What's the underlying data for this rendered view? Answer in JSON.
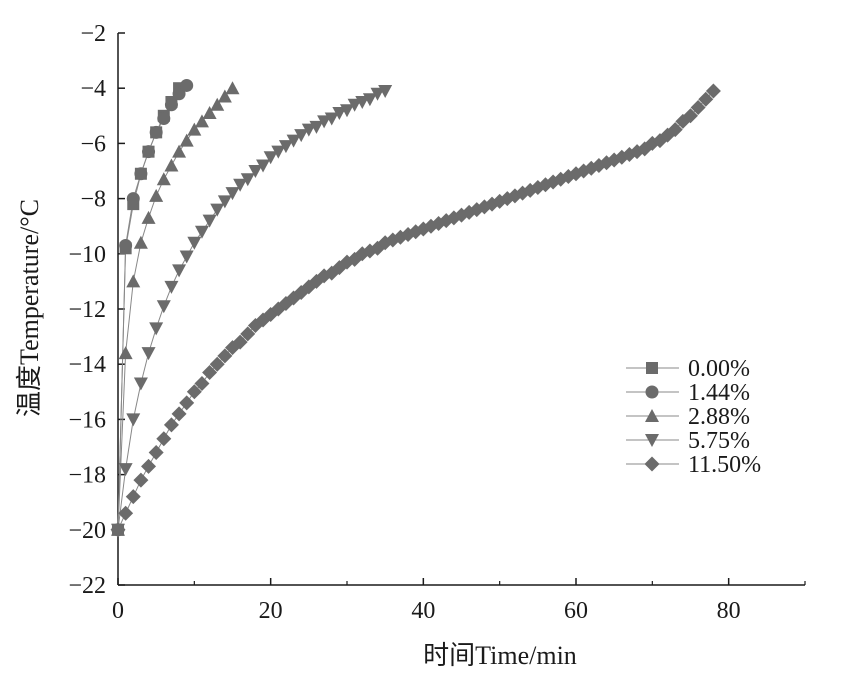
{
  "chart_data": {
    "type": "scatter",
    "xlabel": "时间Time/min",
    "ylabel": "温度Temperature/°C",
    "xlim": [
      0,
      90
    ],
    "ylim": [
      -22,
      -2
    ],
    "xticks": [
      0,
      20,
      40,
      60,
      80
    ],
    "xtick_labels": [
      "0",
      "20",
      "40",
      "60",
      "80"
    ],
    "yticks": [
      -22,
      -20,
      -18,
      -16,
      -14,
      -12,
      -10,
      -8,
      -6,
      -4,
      -2
    ],
    "ytick_labels": [
      "−22",
      "−20",
      "−18",
      "−16",
      "−14",
      "−12",
      "−10",
      "−8",
      "−6",
      "−4",
      "−2"
    ],
    "grid": false,
    "legend_position": "right",
    "series": [
      {
        "name": "0.00%",
        "marker": "square",
        "color": "#6b6b6b",
        "points": [
          [
            0,
            -20.0
          ],
          [
            1,
            -9.8
          ],
          [
            2,
            -8.2
          ],
          [
            3,
            -7.1
          ],
          [
            4,
            -6.3
          ],
          [
            5,
            -5.6
          ],
          [
            6,
            -5.0
          ],
          [
            7,
            -4.5
          ],
          [
            8,
            -4.0
          ]
        ]
      },
      {
        "name": "1.44%",
        "marker": "circle",
        "color": "#6b6b6b",
        "points": [
          [
            0,
            -20.0
          ],
          [
            1,
            -9.7
          ],
          [
            2,
            -8.0
          ],
          [
            3,
            -7.1
          ],
          [
            4,
            -6.3
          ],
          [
            5,
            -5.6
          ],
          [
            6,
            -5.1
          ],
          [
            7,
            -4.6
          ],
          [
            8,
            -4.2
          ],
          [
            9,
            -3.9
          ]
        ]
      },
      {
        "name": "2.88%",
        "marker": "triangle-up",
        "color": "#6b6b6b",
        "points": [
          [
            0,
            -20.0
          ],
          [
            1,
            -13.6
          ],
          [
            2,
            -11.0
          ],
          [
            3,
            -9.6
          ],
          [
            4,
            -8.7
          ],
          [
            5,
            -7.9
          ],
          [
            6,
            -7.3
          ],
          [
            7,
            -6.8
          ],
          [
            8,
            -6.3
          ],
          [
            9,
            -5.9
          ],
          [
            10,
            -5.5
          ],
          [
            11,
            -5.2
          ],
          [
            12,
            -4.9
          ],
          [
            13,
            -4.6
          ],
          [
            14,
            -4.3
          ],
          [
            15,
            -4.0
          ]
        ]
      },
      {
        "name": "5.75%",
        "marker": "triangle-down",
        "color": "#6b6b6b",
        "points": [
          [
            0,
            -20.0
          ],
          [
            1,
            -17.8
          ],
          [
            2,
            -16.0
          ],
          [
            3,
            -14.7
          ],
          [
            4,
            -13.6
          ],
          [
            5,
            -12.7
          ],
          [
            6,
            -11.9
          ],
          [
            7,
            -11.2
          ],
          [
            8,
            -10.6
          ],
          [
            9,
            -10.1
          ],
          [
            10,
            -9.6
          ],
          [
            11,
            -9.2
          ],
          [
            12,
            -8.8
          ],
          [
            13,
            -8.4
          ],
          [
            14,
            -8.1
          ],
          [
            15,
            -7.8
          ],
          [
            16,
            -7.5
          ],
          [
            17,
            -7.3
          ],
          [
            18,
            -7.0
          ],
          [
            19,
            -6.8
          ],
          [
            20,
            -6.5
          ],
          [
            21,
            -6.3
          ],
          [
            22,
            -6.1
          ],
          [
            23,
            -5.9
          ],
          [
            24,
            -5.7
          ],
          [
            25,
            -5.5
          ],
          [
            26,
            -5.4
          ],
          [
            27,
            -5.2
          ],
          [
            28,
            -5.1
          ],
          [
            29,
            -4.9
          ],
          [
            30,
            -4.8
          ],
          [
            31,
            -4.6
          ],
          [
            32,
            -4.5
          ],
          [
            33,
            -4.4
          ],
          [
            34,
            -4.2
          ],
          [
            35,
            -4.1
          ]
        ]
      },
      {
        "name": "11.50%",
        "marker": "diamond",
        "color": "#6b6b6b",
        "points": [
          [
            0,
            -20.0
          ],
          [
            1,
            -19.4
          ],
          [
            2,
            -18.8
          ],
          [
            3,
            -18.2
          ],
          [
            4,
            -17.7
          ],
          [
            5,
            -17.2
          ],
          [
            6,
            -16.7
          ],
          [
            7,
            -16.2
          ],
          [
            8,
            -15.8
          ],
          [
            9,
            -15.4
          ],
          [
            10,
            -15.0
          ],
          [
            11,
            -14.7
          ],
          [
            12,
            -14.3
          ],
          [
            13,
            -14.0
          ],
          [
            14,
            -13.7
          ],
          [
            15,
            -13.4
          ],
          [
            16,
            -13.2
          ],
          [
            17,
            -12.9
          ],
          [
            18,
            -12.6
          ],
          [
            19,
            -12.4
          ],
          [
            20,
            -12.2
          ],
          [
            21,
            -12.0
          ],
          [
            22,
            -11.8
          ],
          [
            23,
            -11.6
          ],
          [
            24,
            -11.4
          ],
          [
            25,
            -11.2
          ],
          [
            26,
            -11.0
          ],
          [
            27,
            -10.8
          ],
          [
            28,
            -10.7
          ],
          [
            29,
            -10.5
          ],
          [
            30,
            -10.3
          ],
          [
            31,
            -10.2
          ],
          [
            32,
            -10.0
          ],
          [
            33,
            -9.9
          ],
          [
            34,
            -9.8
          ],
          [
            35,
            -9.6
          ],
          [
            36,
            -9.5
          ],
          [
            37,
            -9.4
          ],
          [
            38,
            -9.3
          ],
          [
            39,
            -9.2
          ],
          [
            40,
            -9.1
          ],
          [
            41,
            -9.0
          ],
          [
            42,
            -8.9
          ],
          [
            43,
            -8.8
          ],
          [
            44,
            -8.7
          ],
          [
            45,
            -8.6
          ],
          [
            46,
            -8.5
          ],
          [
            47,
            -8.4
          ],
          [
            48,
            -8.3
          ],
          [
            49,
            -8.2
          ],
          [
            50,
            -8.1
          ],
          [
            51,
            -8.0
          ],
          [
            52,
            -7.9
          ],
          [
            53,
            -7.8
          ],
          [
            54,
            -7.7
          ],
          [
            55,
            -7.6
          ],
          [
            56,
            -7.5
          ],
          [
            57,
            -7.4
          ],
          [
            58,
            -7.3
          ],
          [
            59,
            -7.2
          ],
          [
            60,
            -7.1
          ],
          [
            61,
            -7.0
          ],
          [
            62,
            -6.9
          ],
          [
            63,
            -6.8
          ],
          [
            64,
            -6.7
          ],
          [
            65,
            -6.6
          ],
          [
            66,
            -6.5
          ],
          [
            67,
            -6.4
          ],
          [
            68,
            -6.3
          ],
          [
            69,
            -6.2
          ],
          [
            70,
            -6.0
          ],
          [
            71,
            -5.9
          ],
          [
            72,
            -5.7
          ],
          [
            73,
            -5.5
          ],
          [
            74,
            -5.2
          ],
          [
            75,
            -5.0
          ],
          [
            76,
            -4.7
          ],
          [
            77,
            -4.4
          ],
          [
            78,
            -4.1
          ]
        ]
      }
    ]
  }
}
